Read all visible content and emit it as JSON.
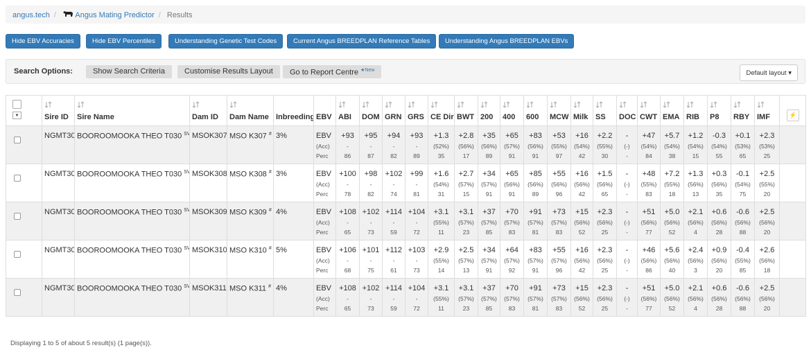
{
  "breadcrumb": {
    "home": "angus.tech",
    "app": "Angus Mating Predictor",
    "current": "Results"
  },
  "buttons": [
    "Hide EBV Accuracies",
    "Hide EBV Percentiles",
    "Understanding Genetic Test Codes",
    "Current Angus BREEDPLAN Reference Tables",
    "Understanding Angus BREEDPLAN EBVs"
  ],
  "search": {
    "label": "Search Options:",
    "buttons": [
      "Show Search Criteria",
      "Customise Results Layout",
      "Go to Report Centre"
    ],
    "badge": "New",
    "layout": "Default layout"
  },
  "table": {
    "headers": [
      "Sire ID",
      "Sire Name",
      "Dam ID",
      "Dam Name",
      "Inbreeding",
      "EBV"
    ],
    "traits": [
      "ABI",
      "DOM",
      "GRN",
      "GRS",
      "CE Dir",
      "BWT",
      "200",
      "400",
      "600",
      "MCW",
      "Milk",
      "SS",
      "DOC",
      "CWT",
      "EMA",
      "RIB",
      "P8",
      "RBY",
      "IMF"
    ],
    "row_labels": [
      "EBV",
      "(Acc)",
      "Perc"
    ],
    "rows": [
      {
        "sire_id": "NGMT30",
        "sire_name": "BOOROOMOOKA THEO T030",
        "sire_tag": "SV",
        "dam_id": "MSOK307",
        "dam_name": "MSO K307",
        "dam_tag": "#",
        "inbreeding": "3%",
        "traits": [
          [
            "+93",
            "-",
            "86"
          ],
          [
            "+95",
            "-",
            "87"
          ],
          [
            "+94",
            "-",
            "82"
          ],
          [
            "+93",
            "-",
            "89"
          ],
          [
            "+1.3",
            "(52%)",
            "35"
          ],
          [
            "+2.8",
            "(56%)",
            "17"
          ],
          [
            "+35",
            "(56%)",
            "89"
          ],
          [
            "+65",
            "(57%)",
            "91"
          ],
          [
            "+83",
            "(56%)",
            "91"
          ],
          [
            "+53",
            "(55%)",
            "97"
          ],
          [
            "+16",
            "(54%)",
            "42"
          ],
          [
            "+2.2",
            "(55%)",
            "30"
          ],
          [
            "-",
            "(-)",
            "-"
          ],
          [
            "+47",
            "(54%)",
            "84"
          ],
          [
            "+5.7",
            "(54%)",
            "38"
          ],
          [
            "+1.2",
            "(54%)",
            "15"
          ],
          [
            "-0.3",
            "(54%)",
            "55"
          ],
          [
            "+0.1",
            "(53%)",
            "65"
          ],
          [
            "+2.3",
            "(53%)",
            "25"
          ]
        ]
      },
      {
        "sire_id": "NGMT30",
        "sire_name": "BOOROOMOOKA THEO T030",
        "sire_tag": "SV",
        "dam_id": "MSOK308",
        "dam_name": "MSO K308",
        "dam_tag": "#",
        "inbreeding": "3%",
        "traits": [
          [
            "+100",
            "-",
            "78"
          ],
          [
            "+98",
            "-",
            "82"
          ],
          [
            "+102",
            "-",
            "74"
          ],
          [
            "+99",
            "-",
            "81"
          ],
          [
            "+1.6",
            "(54%)",
            "31"
          ],
          [
            "+2.7",
            "(57%)",
            "15"
          ],
          [
            "+34",
            "(57%)",
            "91"
          ],
          [
            "+65",
            "(56%)",
            "91"
          ],
          [
            "+85",
            "(56%)",
            "89"
          ],
          [
            "+55",
            "(56%)",
            "96"
          ],
          [
            "+16",
            "(56%)",
            "42"
          ],
          [
            "+1.5",
            "(56%)",
            "65"
          ],
          [
            "-",
            "(-)",
            "-"
          ],
          [
            "+48",
            "(55%)",
            "83"
          ],
          [
            "+7.2",
            "(55%)",
            "18"
          ],
          [
            "+1.3",
            "(56%)",
            "13"
          ],
          [
            "+0.3",
            "(56%)",
            "35"
          ],
          [
            "-0.1",
            "(54%)",
            "75"
          ],
          [
            "+2.5",
            "(55%)",
            "20"
          ]
        ]
      },
      {
        "sire_id": "NGMT30",
        "sire_name": "BOOROOMOOKA THEO T030",
        "sire_tag": "SV",
        "dam_id": "MSOK309",
        "dam_name": "MSO K309",
        "dam_tag": "#",
        "inbreeding": "4%",
        "traits": [
          [
            "+108",
            "-",
            "65"
          ],
          [
            "+102",
            "-",
            "73"
          ],
          [
            "+114",
            "-",
            "59"
          ],
          [
            "+104",
            "-",
            "72"
          ],
          [
            "+3.1",
            "(55%)",
            "11"
          ],
          [
            "+3.1",
            "(57%)",
            "23"
          ],
          [
            "+37",
            "(57%)",
            "85"
          ],
          [
            "+70",
            "(57%)",
            "83"
          ],
          [
            "+91",
            "(57%)",
            "81"
          ],
          [
            "+73",
            "(57%)",
            "83"
          ],
          [
            "+15",
            "(56%)",
            "52"
          ],
          [
            "+2.3",
            "(56%)",
            "25"
          ],
          [
            "-",
            "(-)",
            "-"
          ],
          [
            "+51",
            "(56%)",
            "77"
          ],
          [
            "+5.0",
            "(56%)",
            "52"
          ],
          [
            "+2.1",
            "(56%)",
            "4"
          ],
          [
            "+0.6",
            "(56%)",
            "28"
          ],
          [
            "-0.6",
            "(56%)",
            "88"
          ],
          [
            "+2.5",
            "(56%)",
            "20"
          ]
        ]
      },
      {
        "sire_id": "NGMT30",
        "sire_name": "BOOROOMOOKA THEO T030",
        "sire_tag": "SV",
        "dam_id": "MSOK310",
        "dam_name": "MSO K310",
        "dam_tag": "#",
        "inbreeding": "5%",
        "traits": [
          [
            "+106",
            "-",
            "68"
          ],
          [
            "+101",
            "-",
            "75"
          ],
          [
            "+112",
            "-",
            "61"
          ],
          [
            "+103",
            "-",
            "73"
          ],
          [
            "+2.9",
            "(55%)",
            "14"
          ],
          [
            "+2.5",
            "(57%)",
            "13"
          ],
          [
            "+34",
            "(57%)",
            "91"
          ],
          [
            "+64",
            "(57%)",
            "92"
          ],
          [
            "+83",
            "(57%)",
            "91"
          ],
          [
            "+55",
            "(57%)",
            "96"
          ],
          [
            "+16",
            "(56%)",
            "42"
          ],
          [
            "+2.3",
            "(56%)",
            "25"
          ],
          [
            "-",
            "(-)",
            "-"
          ],
          [
            "+46",
            "(56%)",
            "86"
          ],
          [
            "+5.6",
            "(56%)",
            "40"
          ],
          [
            "+2.4",
            "(56%)",
            "3"
          ],
          [
            "+0.9",
            "(56%)",
            "20"
          ],
          [
            "-0.4",
            "(55%)",
            "85"
          ],
          [
            "+2.6",
            "(56%)",
            "18"
          ]
        ]
      },
      {
        "sire_id": "NGMT30",
        "sire_name": "BOOROOMOOKA THEO T030",
        "sire_tag": "SV",
        "dam_id": "MSOK311",
        "dam_name": "MSO K311",
        "dam_tag": "#",
        "inbreeding": "4%",
        "traits": [
          [
            "+108",
            "-",
            "65"
          ],
          [
            "+102",
            "-",
            "73"
          ],
          [
            "+114",
            "-",
            "59"
          ],
          [
            "+104",
            "-",
            "72"
          ],
          [
            "+3.1",
            "(55%)",
            "11"
          ],
          [
            "+3.1",
            "(57%)",
            "23"
          ],
          [
            "+37",
            "(57%)",
            "85"
          ],
          [
            "+70",
            "(57%)",
            "83"
          ],
          [
            "+91",
            "(57%)",
            "81"
          ],
          [
            "+73",
            "(57%)",
            "83"
          ],
          [
            "+15",
            "(56%)",
            "52"
          ],
          [
            "+2.3",
            "(56%)",
            "25"
          ],
          [
            "-",
            "(-)",
            "-"
          ],
          [
            "+51",
            "(56%)",
            "77"
          ],
          [
            "+5.0",
            "(56%)",
            "52"
          ],
          [
            "+2.1",
            "(56%)",
            "4"
          ],
          [
            "+0.6",
            "(56%)",
            "28"
          ],
          [
            "-0.6",
            "(56%)",
            "88"
          ],
          [
            "+2.5",
            "(56%)",
            "20"
          ]
        ]
      }
    ]
  },
  "footer": "Displaying 1 to 5 of about 5 result(s) (1 page(s))."
}
